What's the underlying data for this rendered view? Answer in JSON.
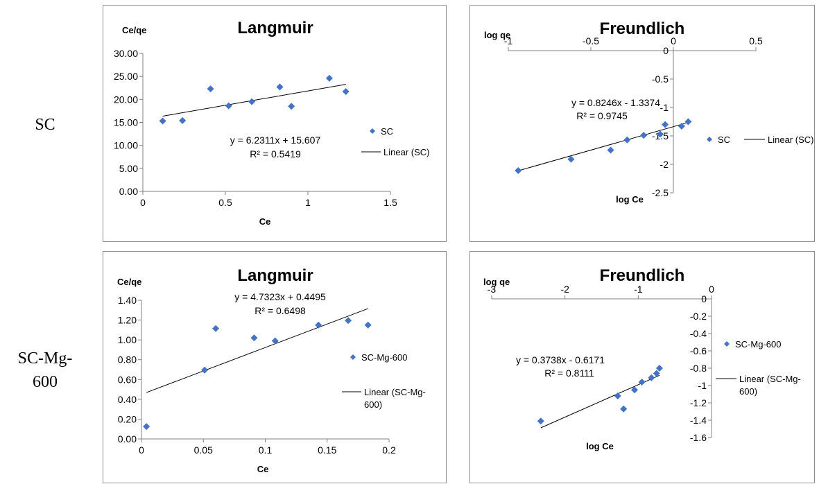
{
  "row_labels": [
    "SC",
    "SC-Mg-600"
  ],
  "chart_data": [
    {
      "id": "c1",
      "type": "scatter",
      "title": "Langmuir",
      "xlabel": "Ce",
      "ylabel": "Ce/qe",
      "xlim": [
        0,
        1.5
      ],
      "ylim": [
        0,
        30
      ],
      "xticks": [
        0,
        0.5,
        1,
        1.5
      ],
      "xtick_labels": [
        "0",
        "0.5",
        "1",
        "1.5"
      ],
      "yticks": [
        0,
        5,
        10,
        15,
        20,
        25,
        30
      ],
      "ytick_labels": [
        "0.00",
        "5.00",
        "10.00",
        "15.00",
        "20.00",
        "25.00",
        "30.00"
      ],
      "grid": false,
      "marker_color": "#4472c4",
      "series": [
        {
          "name": "SC",
          "x": [
            0.12,
            0.24,
            0.41,
            0.52,
            0.66,
            0.83,
            0.9,
            1.13,
            1.23
          ],
          "y": [
            15.3,
            15.4,
            22.3,
            18.6,
            19.5,
            22.7,
            18.5,
            24.6,
            21.7
          ]
        }
      ],
      "trendline": {
        "name": "Linear (SC)",
        "slope": 6.2311,
        "intercept": 15.607,
        "x_range": [
          0.12,
          1.23
        ]
      },
      "equation": "y = 6.2311x + 15.607",
      "r2": "R² = 0.5419",
      "legend": [
        "SC",
        "Linear (SC)"
      ],
      "legend_position": "right"
    },
    {
      "id": "c2",
      "type": "scatter",
      "title": "Freundlich",
      "xlabel": "log Ce",
      "ylabel": "log qe",
      "xlim": [
        -1,
        0.5
      ],
      "ylim": [
        -2.5,
        0
      ],
      "xticks": [
        -1,
        -0.5,
        0,
        0.5
      ],
      "xtick_labels": [
        "-1",
        "-0.5",
        "0",
        "0.5"
      ],
      "yticks": [
        0,
        -0.5,
        -1,
        -1.5,
        -2,
        -2.5
      ],
      "ytick_labels": [
        "0",
        "-0.5",
        "-1",
        "-1.5",
        "-2",
        "-2.5"
      ],
      "grid": false,
      "marker_color": "#4472c4",
      "series": [
        {
          "name": "SC",
          "x": [
            -0.94,
            -0.62,
            -0.38,
            -0.28,
            -0.18,
            -0.08,
            -0.05,
            0.05,
            0.09
          ],
          "y": [
            -2.11,
            -1.91,
            -1.75,
            -1.57,
            -1.49,
            -1.47,
            -1.3,
            -1.33,
            -1.25
          ]
        }
      ],
      "trendline": {
        "name": "Linear (SC)",
        "slope": 0.8246,
        "intercept": -1.3374,
        "x_range": [
          -0.94,
          0.09
        ]
      },
      "equation": "y = 0.8246x - 1.3374",
      "r2": "R² = 0.9745",
      "legend": [
        "SC",
        "Linear (SC)"
      ],
      "legend_position": "right"
    },
    {
      "id": "c3",
      "type": "scatter",
      "title": "Langmuir",
      "xlabel": "Ce",
      "ylabel": "Ce/qe",
      "xlim": [
        0,
        0.2
      ],
      "ylim": [
        0,
        1.4
      ],
      "xticks": [
        0,
        0.05,
        0.1,
        0.15,
        0.2
      ],
      "xtick_labels": [
        "0",
        "0.05",
        "0.1",
        "0.15",
        "0.2"
      ],
      "yticks": [
        0,
        0.2,
        0.4,
        0.6,
        0.8,
        1.0,
        1.2,
        1.4
      ],
      "ytick_labels": [
        "0.00",
        "0.20",
        "0.40",
        "0.60",
        "0.80",
        "1.00",
        "1.20",
        "1.40"
      ],
      "grid": false,
      "marker_color": "#4472c4",
      "series": [
        {
          "name": "SC-Mg-600",
          "x": [
            0.004,
            0.051,
            0.06,
            0.091,
            0.108,
            0.143,
            0.167,
            0.183
          ],
          "y": [
            0.125,
            0.695,
            1.115,
            1.02,
            0.99,
            1.15,
            1.195,
            1.15
          ]
        }
      ],
      "trendline": {
        "name": "Linear (SC-Mg-600)",
        "slope": 4.7323,
        "intercept": 0.4495,
        "x_range": [
          0.004,
          0.183
        ]
      },
      "equation": "y = 4.7323x + 0.4495",
      "r2": "R² = 0.6498",
      "legend": [
        "SC-Mg-600",
        "Linear (SC-Mg-600)"
      ],
      "legend_position": "right"
    },
    {
      "id": "c4",
      "type": "scatter",
      "title": "Freundlich",
      "xlabel": "log Ce",
      "ylabel": "log qe",
      "xlim": [
        -3,
        0
      ],
      "ylim": [
        -1.6,
        0
      ],
      "xticks": [
        -3,
        -2,
        -1,
        0
      ],
      "xtick_labels": [
        "-3",
        "-2",
        "-1",
        "0"
      ],
      "yticks": [
        0,
        -0.2,
        -0.4,
        -0.6,
        -0.8,
        -1,
        -1.2,
        -1.4,
        -1.6
      ],
      "ytick_labels": [
        "0",
        "-0.2",
        "-0.4",
        "-0.6",
        "-0.8",
        "-1",
        "-1.2",
        "-1.4",
        "-1.6"
      ],
      "grid": false,
      "marker_color": "#4472c4",
      "series": [
        {
          "name": "SC-Mg-600",
          "x": [
            -2.33,
            -1.28,
            -1.2,
            -1.05,
            -0.95,
            -0.82,
            -0.75,
            -0.71
          ],
          "y": [
            -1.41,
            -1.12,
            -1.27,
            -1.05,
            -0.96,
            -0.91,
            -0.86,
            -0.8
          ]
        }
      ],
      "trendline": {
        "name": "Linear (SC-Mg-600)",
        "slope": 0.3738,
        "intercept": -0.6171,
        "x_range": [
          -2.33,
          -0.71
        ]
      },
      "equation": "y = 0.3738x - 0.6171",
      "r2": "R² = 0.8111",
      "legend": [
        "SC-Mg-600",
        "Linear (SC-Mg-600)"
      ],
      "legend_position": "right"
    }
  ]
}
